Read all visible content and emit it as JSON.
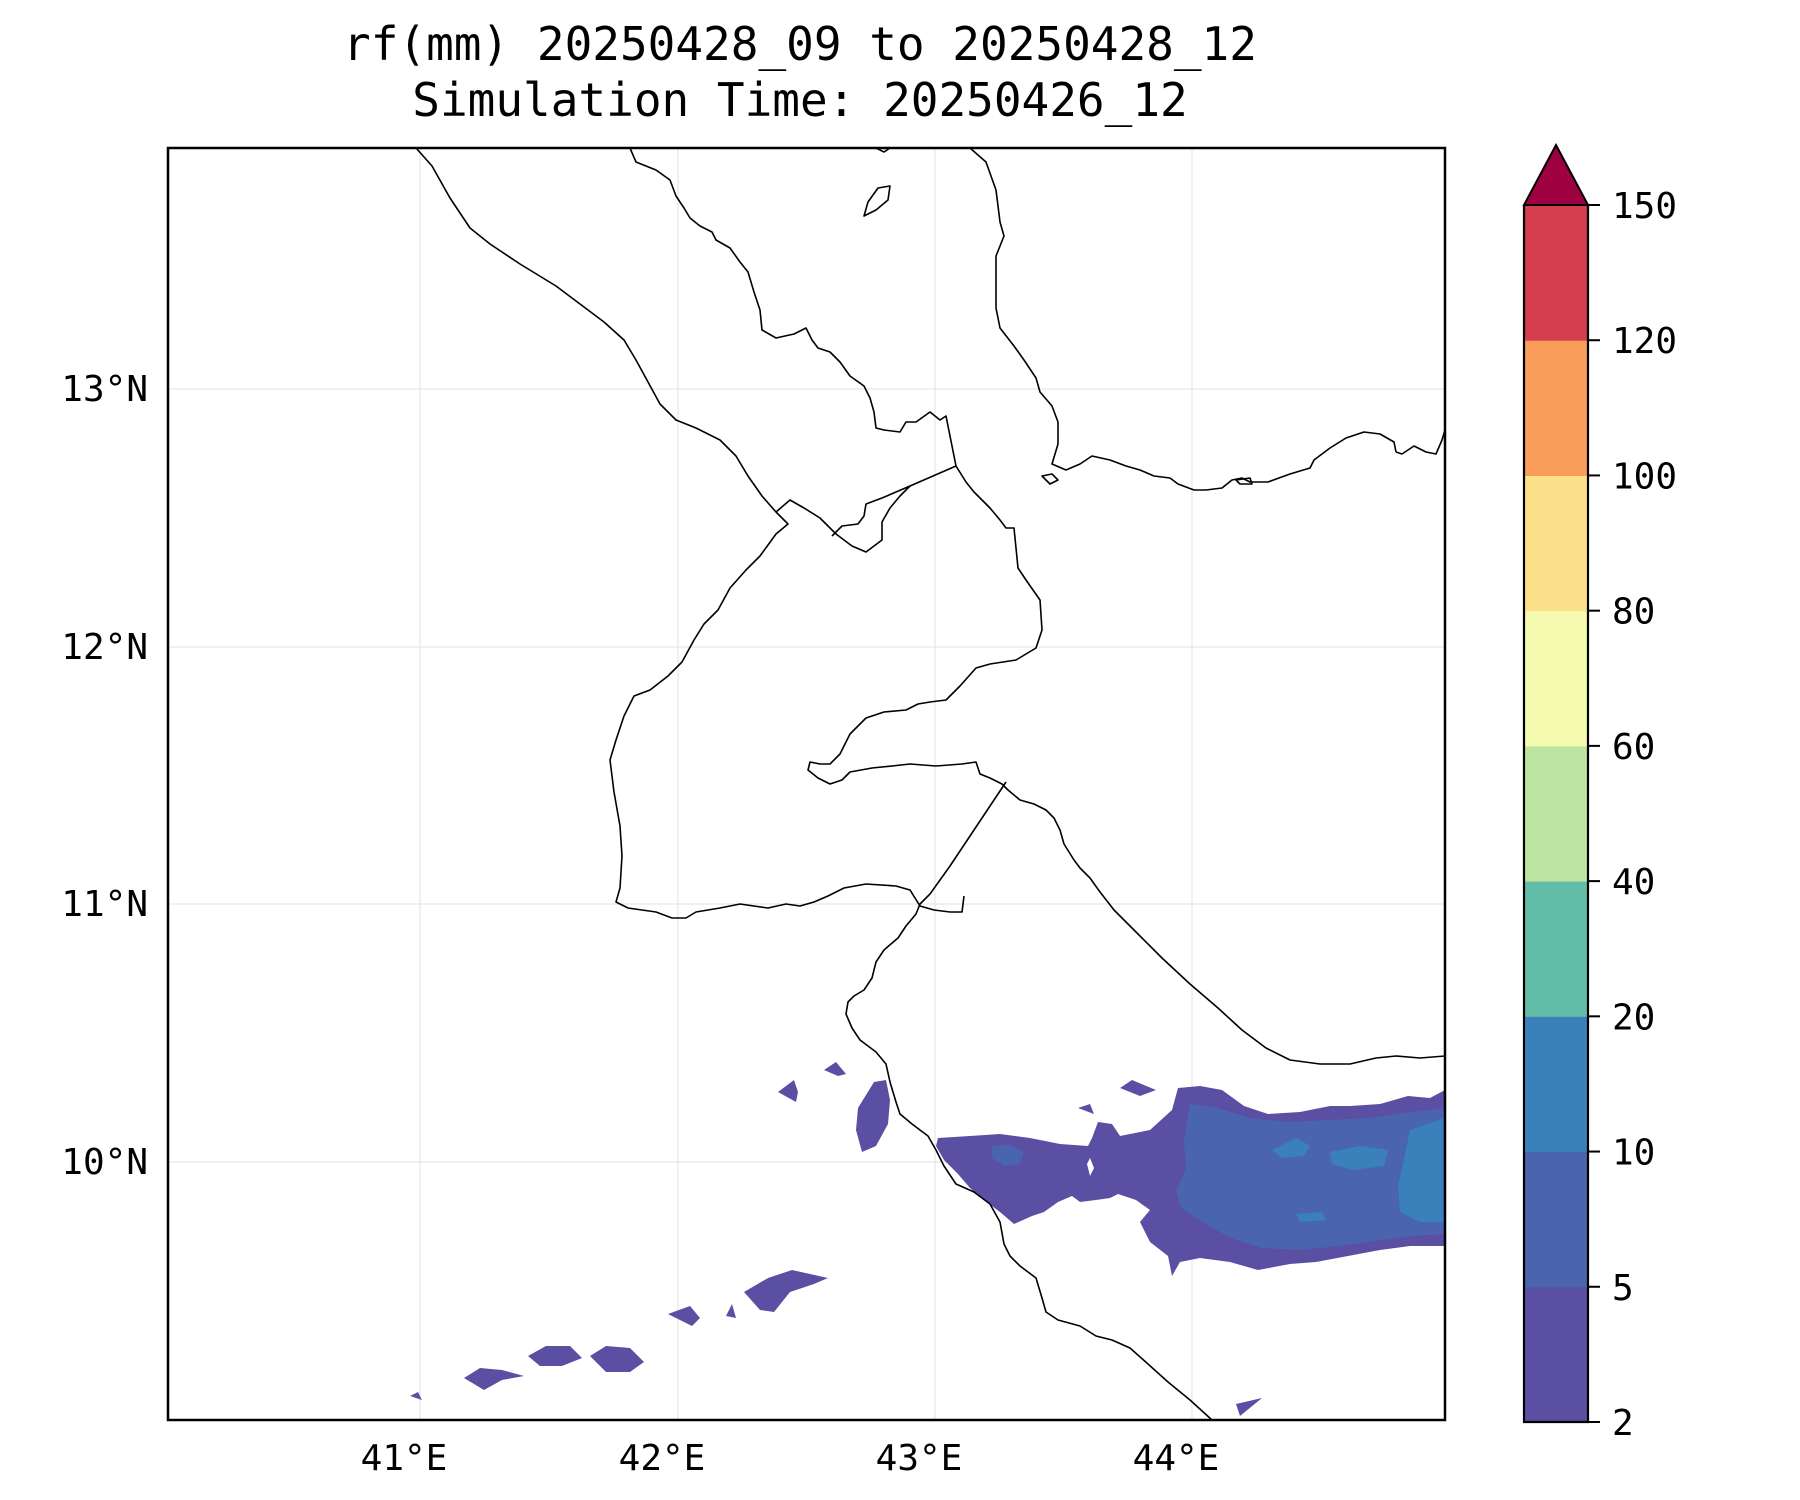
{
  "title": {
    "line1": "rf(mm) 20250428_09 to 20250428_12",
    "line2": "Simulation Time: 20250426_12"
  },
  "map": {
    "lon_ticks": [
      "41°E",
      "42°E",
      "43°E",
      "44°E"
    ],
    "lat_ticks": [
      "13°N",
      "12°N",
      "11°N",
      "10°N"
    ]
  },
  "colorbar": {
    "levels": [
      "2",
      "5",
      "10",
      "20",
      "40",
      "60",
      "80",
      "100",
      "120",
      "150"
    ],
    "colors": [
      "#5a4fa2",
      "#4a64b0",
      "#3a81bb",
      "#62bda8",
      "#bde4a0",
      "#f4faae",
      "#fde08a",
      "#f99d5a",
      "#d53e4f",
      "#9e0142"
    ],
    "extend": "max"
  }
}
